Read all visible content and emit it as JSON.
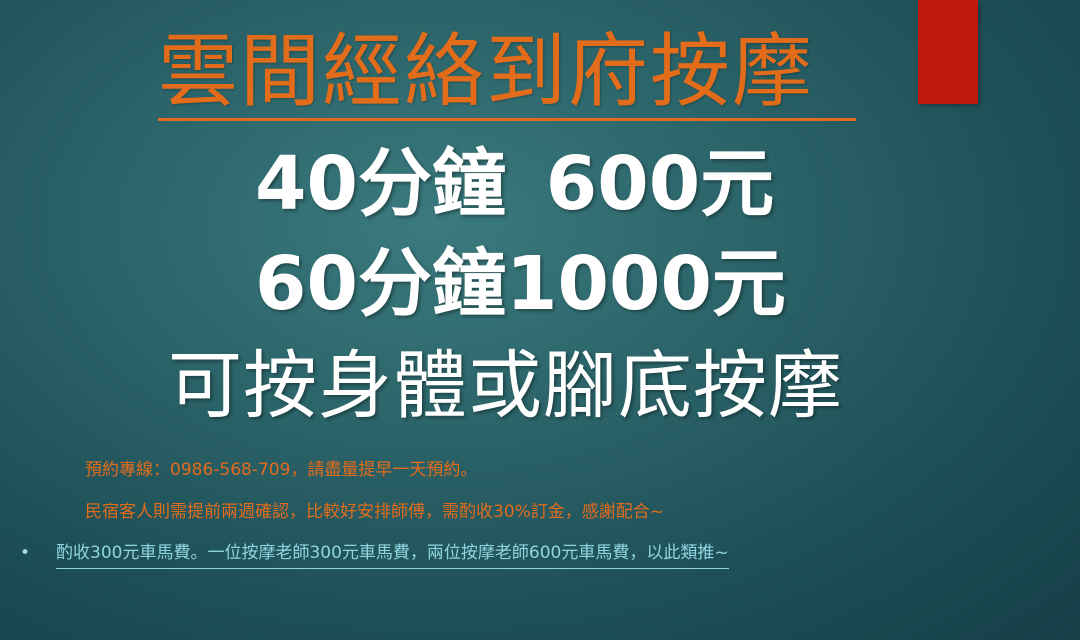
{
  "slide": {
    "title": "雲間經絡到府按摩",
    "price_line_1": "40分鐘  600元",
    "price_line_2": "60分鐘1000元",
    "service_line": "可按身體或腳底按摩",
    "notes": {
      "booking": "預約專線：0986-568-709，請盡量提早一天預約。",
      "deposit": "民宿客人則需提前兩週確認，比較好安排師傅，需酌收30%訂金，感謝配合~"
    },
    "bullet": {
      "symbol": "•",
      "text": "酌收300元車馬費。一位按摩老師300元車馬費，兩位按摩老師600元車馬費，以此類推~"
    }
  },
  "colors": {
    "background": "#2b6469",
    "title": "#e36c1b",
    "accent_block": "#c0180e",
    "main_text": "#ffffff",
    "note_text": "#e36c1b",
    "bullet_text": "#8fd4e0"
  }
}
